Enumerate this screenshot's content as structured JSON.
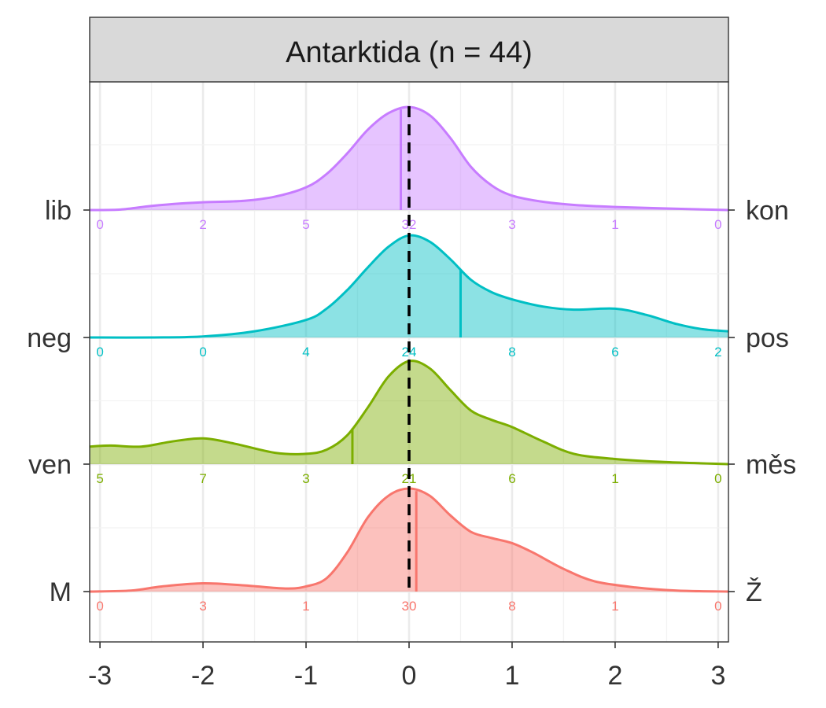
{
  "chart_data": {
    "type": "area",
    "title": "Antarktida (n = 44)",
    "xlabel": "",
    "ylabel": "",
    "xlim": [
      -3.1,
      3.1
    ],
    "x_ticks": [
      {
        "value": -3,
        "label": "-3"
      },
      {
        "value": -2,
        "label": "-2"
      },
      {
        "value": -1,
        "label": "-1"
      },
      {
        "value": 0,
        "label": "0"
      },
      {
        "value": 1,
        "label": "1"
      },
      {
        "value": 2,
        "label": "2"
      },
      {
        "value": 3,
        "label": "3"
      }
    ],
    "reference_line_x": 0,
    "grid": true,
    "count_positions": [
      -3,
      -2,
      -1,
      0,
      1,
      2,
      3
    ],
    "series": [
      {
        "left_label": "lib",
        "right_label": "kon",
        "color": "#C77CFF",
        "mean": -0.08,
        "counts": [
          "0",
          "2",
          "5",
          "32",
          "3",
          "1",
          "0"
        ],
        "density": [
          [
            -3.1,
            0.0
          ],
          [
            -2.8,
            0.005
          ],
          [
            -2.5,
            0.04
          ],
          [
            -2.2,
            0.065
          ],
          [
            -2.0,
            0.075
          ],
          [
            -1.6,
            0.09
          ],
          [
            -1.3,
            0.13
          ],
          [
            -1.0,
            0.22
          ],
          [
            -0.8,
            0.35
          ],
          [
            -0.6,
            0.55
          ],
          [
            -0.4,
            0.78
          ],
          [
            -0.2,
            0.94
          ],
          [
            0.0,
            1.0
          ],
          [
            0.2,
            0.92
          ],
          [
            0.4,
            0.7
          ],
          [
            0.6,
            0.42
          ],
          [
            0.8,
            0.24
          ],
          [
            1.0,
            0.14
          ],
          [
            1.3,
            0.08
          ],
          [
            1.6,
            0.05
          ],
          [
            2.0,
            0.03
          ],
          [
            2.5,
            0.015
          ],
          [
            3.1,
            0.0
          ]
        ]
      },
      {
        "left_label": "neg",
        "right_label": "pos",
        "color": "#00BFC4",
        "mean": 0.5,
        "counts": [
          "0",
          "0",
          "4",
          "24",
          "8",
          "6",
          "2"
        ],
        "density": [
          [
            -3.1,
            0.0
          ],
          [
            -2.5,
            0.0
          ],
          [
            -2.0,
            0.01
          ],
          [
            -1.5,
            0.06
          ],
          [
            -1.0,
            0.17
          ],
          [
            -0.8,
            0.28
          ],
          [
            -0.6,
            0.46
          ],
          [
            -0.4,
            0.68
          ],
          [
            -0.2,
            0.88
          ],
          [
            0.0,
            0.99
          ],
          [
            0.2,
            0.93
          ],
          [
            0.4,
            0.76
          ],
          [
            0.6,
            0.56
          ],
          [
            0.8,
            0.44
          ],
          [
            1.0,
            0.37
          ],
          [
            1.3,
            0.3
          ],
          [
            1.6,
            0.27
          ],
          [
            2.0,
            0.28
          ],
          [
            2.3,
            0.22
          ],
          [
            2.6,
            0.13
          ],
          [
            2.85,
            0.08
          ],
          [
            3.1,
            0.06
          ]
        ]
      },
      {
        "left_label": "ven",
        "right_label": "měs",
        "color": "#7CAE00",
        "mean": -0.55,
        "counts": [
          "5",
          "7",
          "3",
          "21",
          "6",
          "1",
          "0"
        ],
        "density": [
          [
            -3.1,
            0.17
          ],
          [
            -2.9,
            0.18
          ],
          [
            -2.6,
            0.17
          ],
          [
            -2.3,
            0.22
          ],
          [
            -2.0,
            0.25
          ],
          [
            -1.7,
            0.2
          ],
          [
            -1.3,
            0.11
          ],
          [
            -1.0,
            0.1
          ],
          [
            -0.8,
            0.14
          ],
          [
            -0.6,
            0.28
          ],
          [
            -0.4,
            0.55
          ],
          [
            -0.2,
            0.85
          ],
          [
            0.0,
            1.0
          ],
          [
            0.2,
            0.93
          ],
          [
            0.4,
            0.72
          ],
          [
            0.6,
            0.52
          ],
          [
            0.8,
            0.43
          ],
          [
            1.0,
            0.36
          ],
          [
            1.3,
            0.22
          ],
          [
            1.6,
            0.1
          ],
          [
            2.0,
            0.05
          ],
          [
            2.5,
            0.02
          ],
          [
            3.1,
            0.0
          ]
        ]
      },
      {
        "left_label": "M",
        "right_label": "Ž",
        "color": "#F8766D",
        "mean": 0.07,
        "counts": [
          "0",
          "3",
          "1",
          "30",
          "8",
          "1",
          "0"
        ],
        "density": [
          [
            -3.1,
            0.0
          ],
          [
            -2.7,
            0.01
          ],
          [
            -2.4,
            0.05
          ],
          [
            -2.0,
            0.08
          ],
          [
            -1.6,
            0.06
          ],
          [
            -1.2,
            0.03
          ],
          [
            -1.0,
            0.05
          ],
          [
            -0.8,
            0.13
          ],
          [
            -0.6,
            0.38
          ],
          [
            -0.4,
            0.72
          ],
          [
            -0.2,
            0.93
          ],
          [
            0.0,
            1.0
          ],
          [
            0.2,
            0.93
          ],
          [
            0.4,
            0.74
          ],
          [
            0.6,
            0.58
          ],
          [
            0.8,
            0.52
          ],
          [
            1.0,
            0.47
          ],
          [
            1.2,
            0.38
          ],
          [
            1.5,
            0.22
          ],
          [
            1.8,
            0.1
          ],
          [
            2.2,
            0.04
          ],
          [
            2.6,
            0.01
          ],
          [
            3.1,
            0.0
          ]
        ]
      }
    ]
  }
}
